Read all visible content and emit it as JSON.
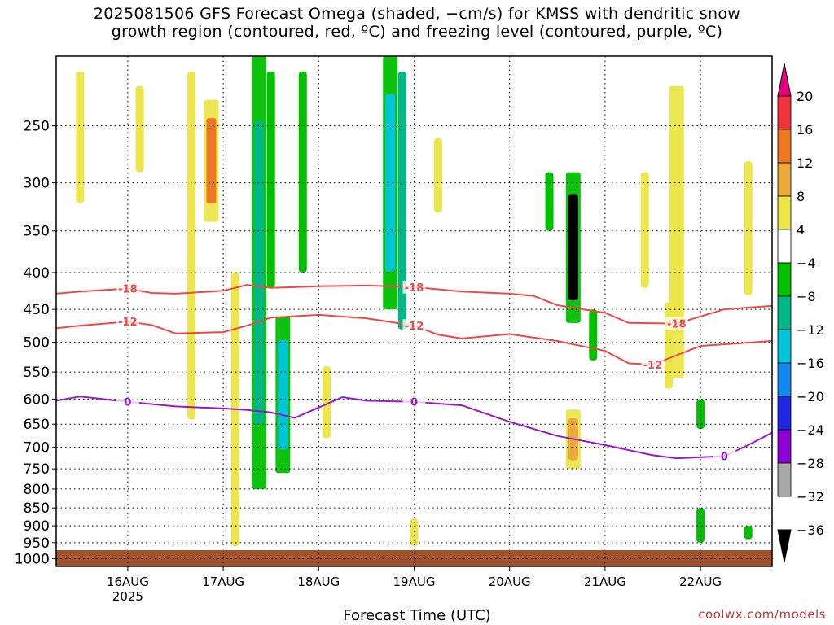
{
  "title_lines": [
    "2025081506 GFS Forecast Omega (shaded, −cm/s) for KMSS with dendritic snow",
    "growth region (contoured, red, ºC) and freezing level (contoured, purple, ºC)"
  ],
  "credit": "coolwx.com/models",
  "chart_data": {
    "type": "heatmap",
    "title": "2025081506 GFS Forecast Omega (shaded, −cm/s) for KMSS with dendritic snow growth region (contoured, red, ºC) and freezing level (contoured, purple, ºC)",
    "xlabel": "Forecast Time (UTC)",
    "ylabel": "",
    "x_range": [
      "2025-08-15T06:00Z",
      "2025-08-22T18:00Z"
    ],
    "x_ticks": [
      {
        "label": "16AUG",
        "sub": "2025",
        "time": "2025-08-16T00:00Z"
      },
      {
        "label": "17AUG",
        "sub": "",
        "time": "2025-08-17T00:00Z"
      },
      {
        "label": "18AUG",
        "sub": "",
        "time": "2025-08-18T00:00Z"
      },
      {
        "label": "19AUG",
        "sub": "",
        "time": "2025-08-19T00:00Z"
      },
      {
        "label": "20AUG",
        "sub": "",
        "time": "2025-08-20T00:00Z"
      },
      {
        "label": "21AUG",
        "sub": "",
        "time": "2025-08-21T00:00Z"
      },
      {
        "label": "22AUG",
        "sub": "",
        "time": "2025-08-22T00:00Z"
      }
    ],
    "y_axis": {
      "scale": "log-pressure",
      "inverted": true,
      "range_hpa": [
        1025,
        200
      ]
    },
    "y_ticks": [
      250,
      300,
      350,
      400,
      450,
      500,
      550,
      600,
      650,
      700,
      750,
      800,
      850,
      900,
      950,
      1000
    ],
    "grid": "dotted",
    "colorbar": {
      "labels": [
        "20",
        "16",
        "12",
        "8",
        "4",
        "−4",
        "−8",
        "−12",
        "−16",
        "−20",
        "−24",
        "−28",
        "−32",
        "−36"
      ],
      "colors": [
        "#e6007e",
        "#f0323c",
        "#ee7822",
        "#eaaa3c",
        "#ece64a",
        "#ffffff",
        "#00c000",
        "#00b886",
        "#00c4d8",
        "#1488f0",
        "#1e28e0",
        "#8c00d2",
        "#a8a8a8",
        "#000000"
      ]
    },
    "contours": [
      {
        "label": "-18",
        "color": "#f04848",
        "points": [
          [
            "2025-08-15T06:00Z",
            428
          ],
          [
            "2025-08-15T12:00Z",
            425
          ],
          [
            "2025-08-16T00:00Z",
            421
          ],
          [
            "2025-08-16T06:00Z",
            427
          ],
          [
            "2025-08-16T12:00Z",
            428
          ],
          [
            "2025-08-17T00:00Z",
            424
          ],
          [
            "2025-08-17T06:00Z",
            416
          ],
          [
            "2025-08-17T12:00Z",
            420
          ],
          [
            "2025-08-18T00:00Z",
            418
          ],
          [
            "2025-08-18T12:00Z",
            417
          ],
          [
            "2025-08-19T00:00Z",
            419
          ],
          [
            "2025-08-19T12:00Z",
            425
          ],
          [
            "2025-08-20T00:00Z",
            428
          ],
          [
            "2025-08-20T06:00Z",
            431
          ],
          [
            "2025-08-20T12:00Z",
            444
          ],
          [
            "2025-08-21T00:00Z",
            455
          ],
          [
            "2025-08-21T06:00Z",
            470
          ],
          [
            "2025-08-21T18:00Z",
            471
          ],
          [
            "2025-08-22T06:00Z",
            450
          ],
          [
            "2025-08-22T18:00Z",
            445
          ]
        ]
      },
      {
        "label": "-12",
        "color": "#f04848",
        "points": [
          [
            "2025-08-15T06:00Z",
            478
          ],
          [
            "2025-08-15T12:00Z",
            474
          ],
          [
            "2025-08-16T00:00Z",
            468
          ],
          [
            "2025-08-16T06:00Z",
            473
          ],
          [
            "2025-08-16T12:00Z",
            486
          ],
          [
            "2025-08-17T00:00Z",
            484
          ],
          [
            "2025-08-17T06:00Z",
            474
          ],
          [
            "2025-08-17T12:00Z",
            462
          ],
          [
            "2025-08-18T00:00Z",
            458
          ],
          [
            "2025-08-18T12:00Z",
            463
          ],
          [
            "2025-08-19T00:00Z",
            474
          ],
          [
            "2025-08-19T06:00Z",
            488
          ],
          [
            "2025-08-19T12:00Z",
            494
          ],
          [
            "2025-08-20T00:00Z",
            487
          ],
          [
            "2025-08-20T12:00Z",
            498
          ],
          [
            "2025-08-21T00:00Z",
            514
          ],
          [
            "2025-08-21T06:00Z",
            535
          ],
          [
            "2025-08-21T12:00Z",
            537
          ],
          [
            "2025-08-22T00:00Z",
            506
          ],
          [
            "2025-08-22T18:00Z",
            498
          ]
        ]
      },
      {
        "label": "0",
        "color": "#9a18c8",
        "points": [
          [
            "2025-08-15T06:00Z",
            603
          ],
          [
            "2025-08-15T12:00Z",
            595
          ],
          [
            "2025-08-16T00:00Z",
            605
          ],
          [
            "2025-08-16T12:00Z",
            614
          ],
          [
            "2025-08-17T00:00Z",
            618
          ],
          [
            "2025-08-17T06:00Z",
            621
          ],
          [
            "2025-08-17T12:00Z",
            626
          ],
          [
            "2025-08-17T18:00Z",
            637
          ],
          [
            "2025-08-18T06:00Z",
            596
          ],
          [
            "2025-08-18T12:00Z",
            603
          ],
          [
            "2025-08-19T00:00Z",
            605
          ],
          [
            "2025-08-19T12:00Z",
            612
          ],
          [
            "2025-08-20T00:00Z",
            645
          ],
          [
            "2025-08-20T12:00Z",
            675
          ],
          [
            "2025-08-21T00:00Z",
            695
          ],
          [
            "2025-08-21T12:00Z",
            718
          ],
          [
            "2025-08-21T18:00Z",
            725
          ],
          [
            "2025-08-22T06:00Z",
            720
          ],
          [
            "2025-08-22T12:00Z",
            695
          ],
          [
            "2025-08-22T18:00Z",
            668
          ]
        ]
      }
    ],
    "omega_regions": [
      {
        "time": "2025-08-16T21:00Z",
        "p_top": 230,
        "p_bottom": 340,
        "value": 14
      },
      {
        "time": "2025-08-17T09:00Z",
        "p_top": 200,
        "p_bottom": 800,
        "value": -8
      },
      {
        "time": "2025-08-17T15:00Z",
        "p_top": 460,
        "p_bottom": 760,
        "value": -12
      },
      {
        "time": "2025-08-18T18:00Z",
        "p_top": 200,
        "p_bottom": 450,
        "value": -12
      },
      {
        "time": "2025-08-20T16:00Z",
        "p_top": 290,
        "p_bottom": 470,
        "value": -36
      },
      {
        "time": "2025-08-20T16:00Z",
        "p_top": 620,
        "p_bottom": 750,
        "value": 12
      },
      {
        "time": "2025-08-21T18:00Z",
        "p_top": 220,
        "p_bottom": 560,
        "value": 8
      }
    ],
    "surface": {
      "color": "#a0522d",
      "p_top": 1010
    }
  }
}
